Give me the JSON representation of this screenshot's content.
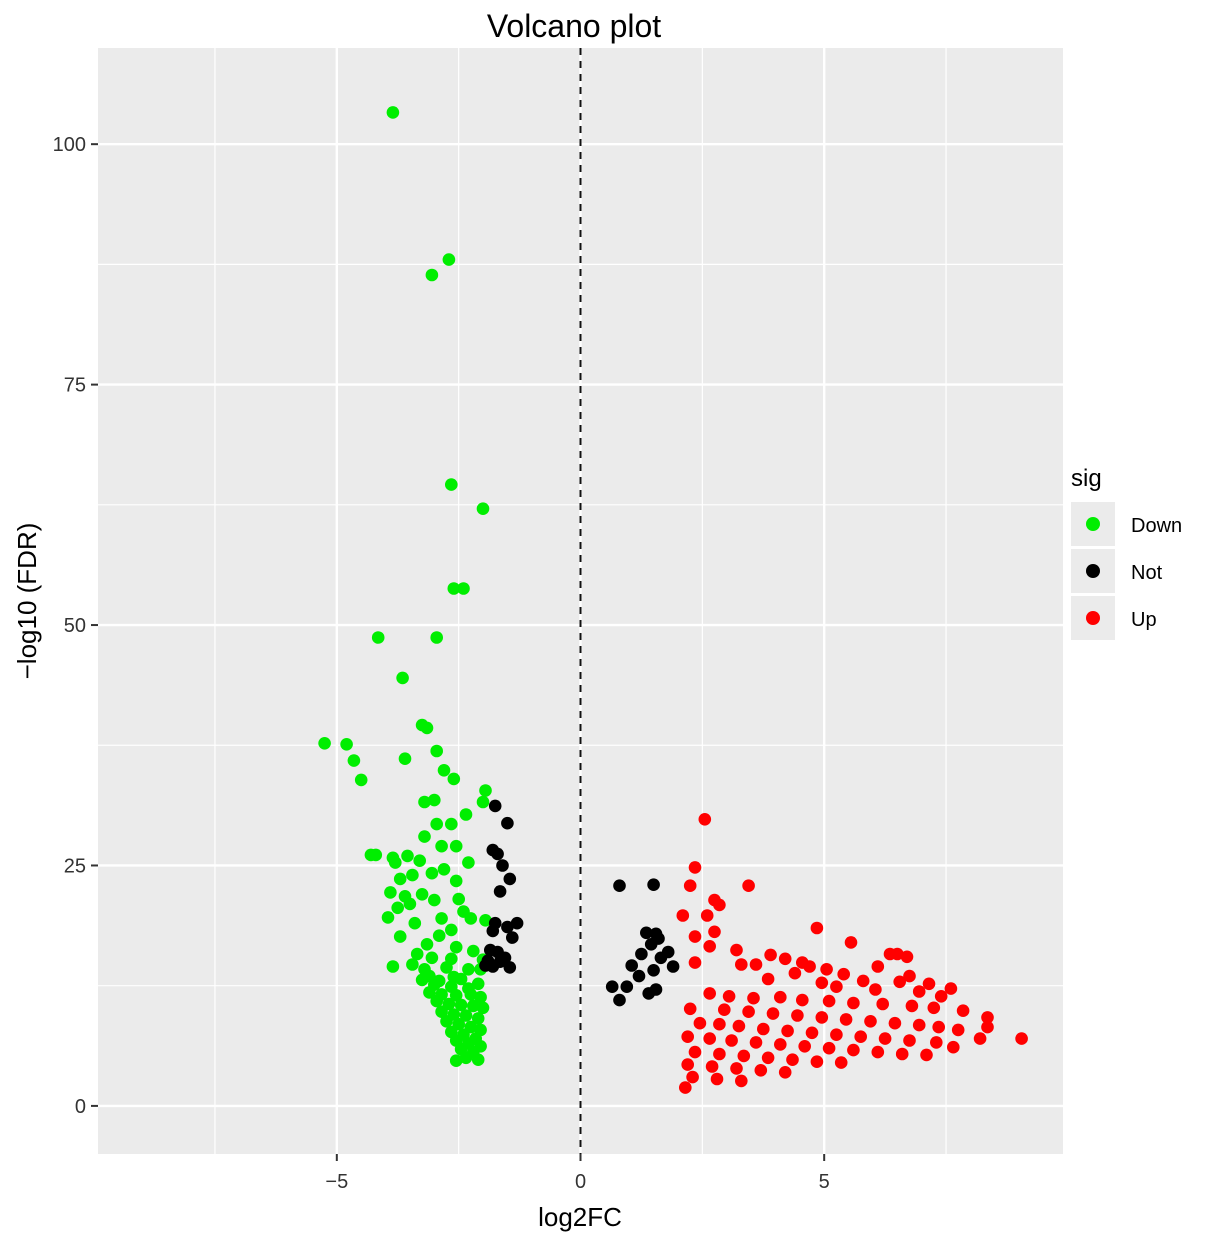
{
  "chart_data": {
    "type": "scatter",
    "title": "Volcano plot",
    "xlabel": "log2FC",
    "ylabel": "−log10 (FDR)",
    "xlim": [
      -9.9,
      9.9
    ],
    "ylim": [
      -5,
      110
    ],
    "x_ticks": [
      -5,
      0,
      5
    ],
    "x_tick_labels": [
      "−5",
      "0",
      "5"
    ],
    "y_ticks": [
      0,
      25,
      50,
      75,
      100
    ],
    "y_tick_labels": [
      "0",
      "25",
      "50",
      "75",
      "100"
    ],
    "grid": true,
    "vline_x": 0,
    "vline_style": "dashed",
    "legend": {
      "title": "sig",
      "position": "right",
      "entries": [
        {
          "label": "Down",
          "color": "#00ee00"
        },
        {
          "label": "Not",
          "color": "#000000"
        },
        {
          "label": "Up",
          "color": "#ff0000"
        }
      ]
    },
    "series": [
      {
        "name": "Down",
        "color": "#00ee00",
        "points": [
          [
            -3.85,
            103.3
          ],
          [
            -2.7,
            88.0
          ],
          [
            -3.05,
            86.4
          ],
          [
            -2.65,
            64.6
          ],
          [
            -2.0,
            62.1
          ],
          [
            -2.6,
            53.8
          ],
          [
            -2.4,
            53.8
          ],
          [
            -4.15,
            48.7
          ],
          [
            -2.95,
            48.7
          ],
          [
            -3.65,
            44.5
          ],
          [
            -3.25,
            39.6
          ],
          [
            -3.15,
            39.3
          ],
          [
            -5.25,
            37.7
          ],
          [
            -4.8,
            37.6
          ],
          [
            -4.65,
            35.9
          ],
          [
            -2.95,
            36.9
          ],
          [
            -3.6,
            36.1
          ],
          [
            -4.5,
            33.9
          ],
          [
            -2.8,
            34.9
          ],
          [
            -2.6,
            34.0
          ],
          [
            -1.95,
            32.8
          ],
          [
            -3.2,
            31.6
          ],
          [
            -2.0,
            31.6
          ],
          [
            -3.0,
            31.8
          ],
          [
            -2.35,
            30.3
          ],
          [
            -2.95,
            29.3
          ],
          [
            -2.65,
            29.3
          ],
          [
            -3.2,
            28.0
          ],
          [
            -2.55,
            27.0
          ],
          [
            -2.85,
            27.0
          ],
          [
            -3.55,
            26.0
          ],
          [
            -4.3,
            26.1
          ],
          [
            -4.2,
            26.1
          ],
          [
            -3.85,
            25.8
          ],
          [
            -3.3,
            25.5
          ],
          [
            -3.8,
            25.3
          ],
          [
            -2.3,
            25.3
          ],
          [
            -2.8,
            24.6
          ],
          [
            -3.45,
            24.0
          ],
          [
            -3.05,
            24.2
          ],
          [
            -2.55,
            23.4
          ],
          [
            -3.7,
            23.6
          ],
          [
            -3.25,
            22.0
          ],
          [
            -3.6,
            21.8
          ],
          [
            -3.9,
            22.2
          ],
          [
            -2.5,
            21.5
          ],
          [
            -3.5,
            21.0
          ],
          [
            -3.75,
            20.6
          ],
          [
            -3.0,
            21.4
          ],
          [
            -2.4,
            20.2
          ],
          [
            -2.25,
            19.5
          ],
          [
            -3.95,
            19.6
          ],
          [
            -2.85,
            19.5
          ],
          [
            -3.4,
            19.0
          ],
          [
            -1.95,
            19.3
          ],
          [
            -2.65,
            18.3
          ],
          [
            -3.7,
            17.6
          ],
          [
            -2.9,
            17.7
          ],
          [
            -3.15,
            16.8
          ],
          [
            -2.55,
            16.5
          ],
          [
            -2.2,
            16.1
          ],
          [
            -3.35,
            15.8
          ],
          [
            -2.65,
            15.3
          ],
          [
            -3.05,
            15.4
          ],
          [
            -2.0,
            15.2
          ],
          [
            -3.45,
            14.7
          ],
          [
            -3.85,
            14.5
          ],
          [
            -3.2,
            14.2
          ],
          [
            -2.75,
            14.4
          ],
          [
            -2.3,
            14.2
          ],
          [
            -2.05,
            14.2
          ],
          [
            -3.1,
            13.5
          ],
          [
            -2.6,
            13.4
          ],
          [
            -3.25,
            13.1
          ],
          [
            -2.9,
            13.0
          ],
          [
            -2.45,
            13.2
          ],
          [
            -2.1,
            12.7
          ],
          [
            -3.0,
            12.6
          ],
          [
            -2.65,
            12.4
          ],
          [
            -2.3,
            12.2
          ],
          [
            -3.1,
            11.8
          ],
          [
            -2.85,
            11.6
          ],
          [
            -2.55,
            11.5
          ],
          [
            -2.25,
            11.6
          ],
          [
            -2.05,
            11.3
          ],
          [
            -2.95,
            10.9
          ],
          [
            -2.7,
            10.6
          ],
          [
            -2.45,
            10.5
          ],
          [
            -2.2,
            10.4
          ],
          [
            -2.0,
            10.2
          ],
          [
            -2.85,
            9.8
          ],
          [
            -2.6,
            9.5
          ],
          [
            -2.35,
            9.4
          ],
          [
            -2.1,
            9.1
          ],
          [
            -2.75,
            8.8
          ],
          [
            -2.5,
            8.5
          ],
          [
            -2.25,
            8.2
          ],
          [
            -2.05,
            7.9
          ],
          [
            -2.65,
            7.7
          ],
          [
            -2.4,
            7.4
          ],
          [
            -2.15,
            7.0
          ],
          [
            -2.55,
            6.8
          ],
          [
            -2.3,
            6.5
          ],
          [
            -2.05,
            6.2
          ],
          [
            -2.45,
            5.9
          ],
          [
            -2.2,
            5.6
          ],
          [
            -2.35,
            5.0
          ],
          [
            -2.1,
            4.8
          ],
          [
            -2.55,
            4.7
          ]
        ]
      },
      {
        "name": "Not",
        "color": "#000000",
        "points": [
          [
            -1.75,
            31.2
          ],
          [
            -1.5,
            29.4
          ],
          [
            -1.8,
            26.6
          ],
          [
            -1.7,
            26.2
          ],
          [
            -1.6,
            25.0
          ],
          [
            -1.45,
            23.6
          ],
          [
            -1.65,
            22.3
          ],
          [
            -1.3,
            19.0
          ],
          [
            -1.75,
            19.0
          ],
          [
            -1.5,
            18.6
          ],
          [
            -1.8,
            18.2
          ],
          [
            -1.4,
            17.5
          ],
          [
            -1.85,
            16.2
          ],
          [
            -1.7,
            16.0
          ],
          [
            -1.55,
            15.4
          ],
          [
            -1.9,
            15.1
          ],
          [
            -1.65,
            15.0
          ],
          [
            -1.45,
            14.4
          ],
          [
            -1.95,
            14.6
          ],
          [
            -1.8,
            14.5
          ],
          [
            0.8,
            22.9
          ],
          [
            1.5,
            23.0
          ],
          [
            1.35,
            18.0
          ],
          [
            1.55,
            17.9
          ],
          [
            1.6,
            17.4
          ],
          [
            1.45,
            16.8
          ],
          [
            1.25,
            15.8
          ],
          [
            1.65,
            15.4
          ],
          [
            1.8,
            16.0
          ],
          [
            1.05,
            14.6
          ],
          [
            1.5,
            14.1
          ],
          [
            1.9,
            14.5
          ],
          [
            1.2,
            13.5
          ],
          [
            0.65,
            12.4
          ],
          [
            0.95,
            12.4
          ],
          [
            1.55,
            12.1
          ],
          [
            1.4,
            11.7
          ],
          [
            0.8,
            11.0
          ]
        ]
      },
      {
        "name": "Up",
        "color": "#ff0000",
        "points": [
          [
            2.55,
            29.8
          ],
          [
            2.35,
            24.8
          ],
          [
            3.45,
            22.9
          ],
          [
            2.25,
            22.9
          ],
          [
            2.75,
            21.4
          ],
          [
            2.85,
            20.9
          ],
          [
            2.6,
            19.8
          ],
          [
            2.1,
            19.8
          ],
          [
            2.75,
            18.1
          ],
          [
            2.35,
            17.6
          ],
          [
            2.65,
            16.6
          ],
          [
            3.2,
            16.2
          ],
          [
            4.85,
            18.5
          ],
          [
            5.55,
            17.0
          ],
          [
            6.35,
            15.8
          ],
          [
            6.5,
            15.8
          ],
          [
            6.7,
            15.5
          ],
          [
            3.9,
            15.7
          ],
          [
            4.2,
            15.3
          ],
          [
            4.55,
            14.9
          ],
          [
            2.35,
            14.9
          ],
          [
            3.3,
            14.7
          ],
          [
            3.6,
            14.7
          ],
          [
            6.1,
            14.5
          ],
          [
            4.7,
            14.5
          ],
          [
            5.05,
            14.2
          ],
          [
            4.4,
            13.8
          ],
          [
            5.4,
            13.7
          ],
          [
            6.75,
            13.5
          ],
          [
            3.85,
            13.2
          ],
          [
            5.8,
            13.0
          ],
          [
            4.95,
            12.8
          ],
          [
            6.55,
            12.9
          ],
          [
            7.15,
            12.7
          ],
          [
            7.6,
            12.2
          ],
          [
            5.25,
            12.4
          ],
          [
            6.05,
            12.1
          ],
          [
            6.95,
            11.9
          ],
          [
            7.4,
            11.4
          ],
          [
            2.65,
            11.7
          ],
          [
            3.05,
            11.4
          ],
          [
            3.55,
            11.2
          ],
          [
            4.1,
            11.3
          ],
          [
            4.55,
            11.0
          ],
          [
            5.1,
            10.9
          ],
          [
            5.6,
            10.7
          ],
          [
            6.2,
            10.6
          ],
          [
            6.8,
            10.4
          ],
          [
            7.25,
            10.2
          ],
          [
            7.85,
            9.9
          ],
          [
            8.35,
            9.2
          ],
          [
            2.25,
            10.1
          ],
          [
            2.95,
            10.0
          ],
          [
            3.45,
            9.8
          ],
          [
            3.95,
            9.6
          ],
          [
            4.45,
            9.4
          ],
          [
            4.95,
            9.2
          ],
          [
            5.45,
            9.0
          ],
          [
            5.95,
            8.8
          ],
          [
            6.45,
            8.6
          ],
          [
            6.95,
            8.4
          ],
          [
            7.35,
            8.2
          ],
          [
            7.75,
            7.9
          ],
          [
            8.35,
            8.2
          ],
          [
            2.45,
            8.6
          ],
          [
            2.85,
            8.5
          ],
          [
            3.25,
            8.3
          ],
          [
            3.75,
            8.0
          ],
          [
            4.25,
            7.8
          ],
          [
            4.75,
            7.6
          ],
          [
            5.25,
            7.4
          ],
          [
            5.75,
            7.2
          ],
          [
            6.25,
            7.0
          ],
          [
            6.75,
            6.8
          ],
          [
            7.3,
            6.6
          ],
          [
            8.2,
            7.0
          ],
          [
            9.05,
            7.0
          ],
          [
            7.65,
            6.1
          ],
          [
            2.2,
            7.2
          ],
          [
            2.65,
            7.0
          ],
          [
            3.1,
            6.8
          ],
          [
            3.6,
            6.6
          ],
          [
            4.1,
            6.4
          ],
          [
            4.6,
            6.2
          ],
          [
            5.1,
            6.0
          ],
          [
            5.6,
            5.8
          ],
          [
            6.1,
            5.6
          ],
          [
            6.6,
            5.4
          ],
          [
            7.1,
            5.3
          ],
          [
            2.35,
            5.6
          ],
          [
            2.85,
            5.4
          ],
          [
            3.35,
            5.2
          ],
          [
            3.85,
            5.0
          ],
          [
            4.35,
            4.8
          ],
          [
            4.85,
            4.6
          ],
          [
            5.35,
            4.5
          ],
          [
            2.2,
            4.3
          ],
          [
            2.7,
            4.1
          ],
          [
            3.2,
            3.9
          ],
          [
            3.7,
            3.7
          ],
          [
            4.2,
            3.5
          ],
          [
            2.3,
            3.0
          ],
          [
            2.8,
            2.8
          ],
          [
            3.3,
            2.6
          ],
          [
            2.15,
            1.9
          ]
        ]
      }
    ]
  }
}
